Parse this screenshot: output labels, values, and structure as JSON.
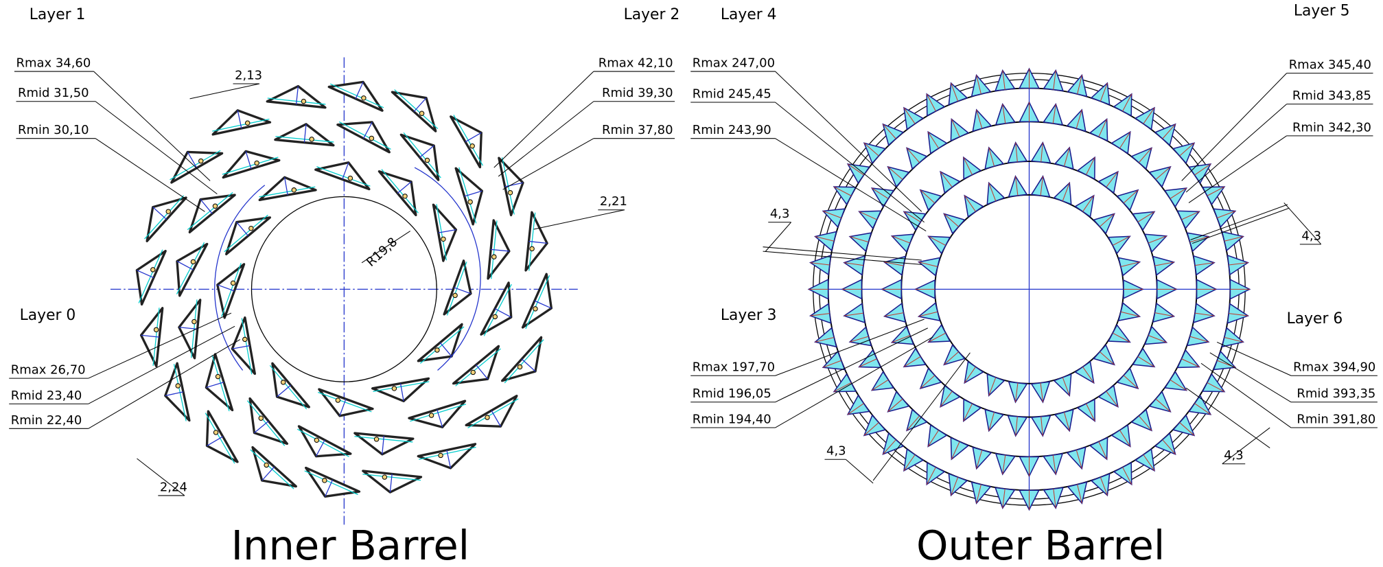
{
  "inner_barrel": {
    "title": "Inner Barrel",
    "layers": [
      {
        "label": "Layer 0",
        "rmax": "Rmax 26,70",
        "rmid": "Rmid 23,40",
        "rmin": "Rmin 22,40"
      },
      {
        "label": "Layer 1",
        "rmax": "Rmax 34,60",
        "rmid": "Rmid 31,50",
        "rmin": "Rmin 30,10"
      },
      {
        "label": "Layer 2",
        "rmax": "Rmax 42,10",
        "rmid": "Rmid 39,30",
        "rmin": "Rmin 37,80"
      }
    ],
    "dimensions": [
      "2,13",
      "2,21",
      "2,24",
      "R19,8"
    ]
  },
  "outer_barrel": {
    "title": "Outer Barrel",
    "layers": [
      {
        "label": "Layer 3",
        "rmax": "Rmax 197,70",
        "rmid": "Rmid 196,05",
        "rmin": "Rmin 194,40"
      },
      {
        "label": "Layer 4",
        "rmax": "Rmax 247,00",
        "rmid": "Rmid 245,45",
        "rmin": "Rmin 243,90"
      },
      {
        "label": "Layer 5",
        "rmax": "Rmax 345,40",
        "rmid": "Rmid 343,85",
        "rmin": "Rmin 342,30"
      },
      {
        "label": "Layer 6",
        "rmax": "Rmax 394,90",
        "rmid": "Rmid 393,35",
        "rmin": "Rmin 391,80"
      }
    ],
    "dimensions": [
      "4,3",
      "4,3",
      "4,3",
      "4,3"
    ]
  }
}
